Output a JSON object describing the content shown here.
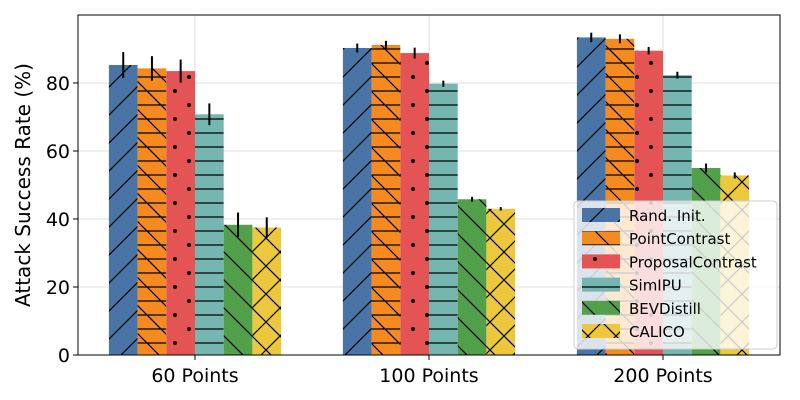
{
  "chart_data": {
    "type": "bar",
    "title": "",
    "xlabel": "",
    "ylabel": "Attack Success Rate (%)",
    "ylim": [
      0,
      100
    ],
    "yticks": [
      0,
      20,
      40,
      60,
      80
    ],
    "grid": true,
    "legend_position": "bottom-right",
    "categories": [
      "60 Points",
      "100 Points",
      "200 Points"
    ],
    "series": [
      {
        "name": "Rand. Init.",
        "color": "#4a74a6",
        "hatch": "diagonal",
        "values": [
          85.3,
          90.3,
          93.4
        ],
        "errors": [
          3.8,
          1.3,
          1.4
        ]
      },
      {
        "name": "PointContrast",
        "color": "#f58b1f",
        "hatch": "horizontal-backslash",
        "values": [
          84.3,
          91.2,
          93.0
        ],
        "errors": [
          3.6,
          1.2,
          1.3
        ]
      },
      {
        "name": "ProposalContrast",
        "color": "#e55454",
        "hatch": "dots",
        "values": [
          83.5,
          88.8,
          89.5
        ],
        "errors": [
          3.4,
          1.6,
          1.1
        ]
      },
      {
        "name": "SimIPU",
        "color": "#75b6b0",
        "hatch": "horizontal",
        "values": [
          70.8,
          79.8,
          82.3
        ],
        "errors": [
          3.2,
          0.9,
          1.0
        ]
      },
      {
        "name": "BEVDistill",
        "color": "#52a04a",
        "hatch": "backslash",
        "values": [
          38.3,
          45.8,
          55.0
        ],
        "errors": [
          3.6,
          0.7,
          1.3
        ]
      },
      {
        "name": "CALICO",
        "color": "#ecc83e",
        "hatch": "cross",
        "values": [
          37.5,
          43.0,
          52.8
        ],
        "errors": [
          3.0,
          0.5,
          0.9
        ]
      }
    ]
  }
}
